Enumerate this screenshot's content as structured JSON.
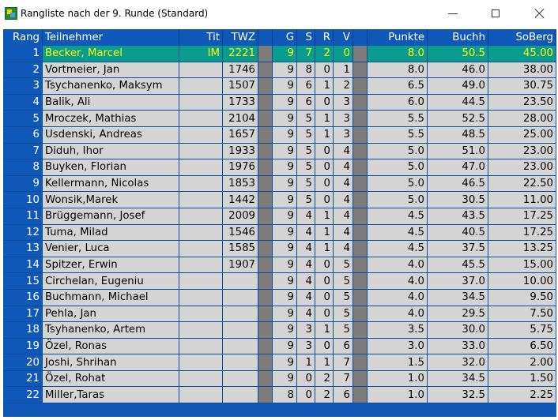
{
  "window": {
    "title": "Rangliste nach der 9. Runde (Standard)",
    "icon": "swiss-chess-app-icon"
  },
  "headers": {
    "rang": "Rang",
    "teilnehmer": "Teilnehmer",
    "tit": "Tit",
    "twz": "TWZ",
    "g": "G",
    "s": "S",
    "r": "R",
    "v": "V",
    "punkte": "Punkte",
    "buchh": "Buchh",
    "soberg": "SoBerg"
  },
  "colors": {
    "grid_blue": "#1058b8",
    "cell_gray": "#d4d4d4",
    "separator_gray": "#7c7c7c",
    "highlight_teal": "#0a9c8e",
    "highlight_text": "#ffff00"
  },
  "rows": [
    {
      "rang": "1",
      "name": "Becker, Marcel",
      "tit": "IM",
      "twz": "2221",
      "g": "9",
      "s": "7",
      "r": "2",
      "v": "0",
      "punkte": "8.0",
      "buchh": "50.5",
      "soberg": "45.00"
    },
    {
      "rang": "2",
      "name": "Vortmeier, Jan",
      "tit": "",
      "twz": "1746",
      "g": "9",
      "s": "8",
      "r": "0",
      "v": "1",
      "punkte": "8.0",
      "buchh": "46.0",
      "soberg": "38.00"
    },
    {
      "rang": "3",
      "name": "Tsychanenko, Maksym",
      "tit": "",
      "twz": "1507",
      "g": "9",
      "s": "6",
      "r": "1",
      "v": "2",
      "punkte": "6.5",
      "buchh": "49.0",
      "soberg": "30.75"
    },
    {
      "rang": "4",
      "name": "Balik, Ali",
      "tit": "",
      "twz": "1733",
      "g": "9",
      "s": "6",
      "r": "0",
      "v": "3",
      "punkte": "6.0",
      "buchh": "44.5",
      "soberg": "23.50"
    },
    {
      "rang": "5",
      "name": "Mroczek, Mathias",
      "tit": "",
      "twz": "2104",
      "g": "9",
      "s": "5",
      "r": "1",
      "v": "3",
      "punkte": "5.5",
      "buchh": "52.5",
      "soberg": "28.00"
    },
    {
      "rang": "6",
      "name": "Usdenski, Andreas",
      "tit": "",
      "twz": "1657",
      "g": "9",
      "s": "5",
      "r": "1",
      "v": "3",
      "punkte": "5.5",
      "buchh": "48.5",
      "soberg": "25.00"
    },
    {
      "rang": "7",
      "name": "Diduh, Ihor",
      "tit": "",
      "twz": "1933",
      "g": "9",
      "s": "5",
      "r": "0",
      "v": "4",
      "punkte": "5.0",
      "buchh": "51.0",
      "soberg": "23.00"
    },
    {
      "rang": "8",
      "name": "Buyken, Florian",
      "tit": "",
      "twz": "1976",
      "g": "9",
      "s": "5",
      "r": "0",
      "v": "4",
      "punkte": "5.0",
      "buchh": "47.0",
      "soberg": "23.00"
    },
    {
      "rang": "9",
      "name": "Kellermann, Nicolas",
      "tit": "",
      "twz": "1853",
      "g": "9",
      "s": "5",
      "r": "0",
      "v": "4",
      "punkte": "5.0",
      "buchh": "46.5",
      "soberg": "22.50"
    },
    {
      "rang": "10",
      "name": "Wonsik,Marek",
      "tit": "",
      "twz": "1442",
      "g": "9",
      "s": "5",
      "r": "0",
      "v": "4",
      "punkte": "5.0",
      "buchh": "30.5",
      "soberg": "11.00"
    },
    {
      "rang": "11",
      "name": "Brüggemann, Josef",
      "tit": "",
      "twz": "2009",
      "g": "9",
      "s": "4",
      "r": "1",
      "v": "4",
      "punkte": "4.5",
      "buchh": "43.5",
      "soberg": "17.25"
    },
    {
      "rang": "12",
      "name": "Tuma, Milad",
      "tit": "",
      "twz": "1546",
      "g": "9",
      "s": "4",
      "r": "1",
      "v": "4",
      "punkte": "4.5",
      "buchh": "40.5",
      "soberg": "17.25"
    },
    {
      "rang": "13",
      "name": "Venier, Luca",
      "tit": "",
      "twz": "1585",
      "g": "9",
      "s": "4",
      "r": "1",
      "v": "4",
      "punkte": "4.5",
      "buchh": "37.5",
      "soberg": "13.25"
    },
    {
      "rang": "14",
      "name": "Spitzer, Erwin",
      "tit": "",
      "twz": "1907",
      "g": "9",
      "s": "4",
      "r": "0",
      "v": "5",
      "punkte": "4.0",
      "buchh": "45.5",
      "soberg": "15.00"
    },
    {
      "rang": "15",
      "name": "Circhelan, Eugeniu",
      "tit": "",
      "twz": "",
      "g": "9",
      "s": "4",
      "r": "0",
      "v": "5",
      "punkte": "4.0",
      "buchh": "37.0",
      "soberg": "10.00"
    },
    {
      "rang": "16",
      "name": "Buchmann, Michael",
      "tit": "",
      "twz": "",
      "g": "9",
      "s": "4",
      "r": "0",
      "v": "5",
      "punkte": "4.0",
      "buchh": "34.5",
      "soberg": "9.50"
    },
    {
      "rang": "17",
      "name": "Pehla, Jan",
      "tit": "",
      "twz": "",
      "g": "9",
      "s": "4",
      "r": "0",
      "v": "5",
      "punkte": "4.0",
      "buchh": "29.5",
      "soberg": "7.50"
    },
    {
      "rang": "18",
      "name": "Tsyhanenko, Artem",
      "tit": "",
      "twz": "",
      "g": "9",
      "s": "3",
      "r": "1",
      "v": "5",
      "punkte": "3.5",
      "buchh": "30.0",
      "soberg": "5.75"
    },
    {
      "rang": "19",
      "name": "Özel, Ronas",
      "tit": "",
      "twz": "",
      "g": "9",
      "s": "3",
      "r": "0",
      "v": "6",
      "punkte": "3.0",
      "buchh": "33.0",
      "soberg": "6.50"
    },
    {
      "rang": "20",
      "name": "Joshi, Shrihan",
      "tit": "",
      "twz": "",
      "g": "9",
      "s": "1",
      "r": "1",
      "v": "7",
      "punkte": "1.5",
      "buchh": "32.0",
      "soberg": "2.00"
    },
    {
      "rang": "21",
      "name": "Özel, Rohat",
      "tit": "",
      "twz": "",
      "g": "9",
      "s": "0",
      "r": "2",
      "v": "7",
      "punkte": "1.0",
      "buchh": "34.5",
      "soberg": "1.50"
    },
    {
      "rang": "22",
      "name": "Miller,Taras",
      "tit": "",
      "twz": "",
      "g": "8",
      "s": "0",
      "r": "2",
      "v": "6",
      "punkte": "1.0",
      "buchh": "32.5",
      "soberg": "2.25"
    }
  ]
}
